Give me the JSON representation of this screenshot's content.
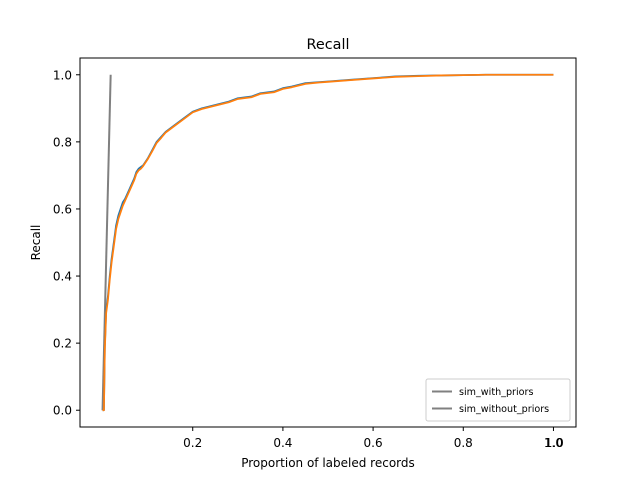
{
  "chart_data": {
    "type": "line",
    "title": "Recall",
    "xlabel": "Proportion of labeled records",
    "ylabel": "Recall",
    "xlim": [
      -0.05,
      1.05
    ],
    "ylim": [
      -0.05,
      1.05
    ],
    "x_ticks": [
      0.2,
      0.4,
      0.6,
      0.8,
      1.0
    ],
    "x_tick_labels": [
      "0.2",
      "0.4",
      "0.6",
      "0.8",
      "1.0"
    ],
    "x_tick_overlay_labels": [
      "1.0"
    ],
    "y_ticks": [
      0.0,
      0.2,
      0.4,
      0.6,
      0.8,
      1.0
    ],
    "y_tick_labels": [
      "0.0",
      "0.2",
      "0.4",
      "0.6",
      "0.8",
      "1.0"
    ],
    "grid": false,
    "legend": {
      "position": "lower-right",
      "entries": [
        {
          "label": "sim_with_priors",
          "color": "#808080"
        },
        {
          "label": "sim_without_priors",
          "color": "#808080"
        }
      ]
    },
    "series": [
      {
        "color": "#808080",
        "x": [
          0.0,
          0.018
        ],
        "y": [
          0.0,
          1.0
        ]
      },
      {
        "color": "#1f77b4",
        "x": [
          0.0,
          0.003,
          0.005,
          0.008,
          0.012,
          0.016,
          0.02,
          0.025,
          0.03,
          0.035,
          0.04,
          0.045,
          0.05,
          0.055,
          0.06,
          0.065,
          0.07,
          0.075,
          0.08,
          0.085,
          0.09,
          0.1,
          0.11,
          0.12,
          0.13,
          0.14,
          0.15,
          0.16,
          0.18,
          0.2,
          0.22,
          0.25,
          0.28,
          0.3,
          0.33,
          0.35,
          0.38,
          0.4,
          0.42,
          0.45,
          0.48,
          0.5,
          0.55,
          0.6,
          0.65,
          0.7,
          0.75,
          0.8,
          0.85,
          0.9,
          0.95,
          1.0
        ],
        "y": [
          0.0,
          0.0,
          0.19,
          0.3,
          0.34,
          0.4,
          0.45,
          0.5,
          0.55,
          0.58,
          0.6,
          0.62,
          0.63,
          0.645,
          0.66,
          0.675,
          0.69,
          0.71,
          0.72,
          0.725,
          0.73,
          0.75,
          0.775,
          0.8,
          0.815,
          0.83,
          0.84,
          0.85,
          0.87,
          0.89,
          0.9,
          0.91,
          0.92,
          0.93,
          0.935,
          0.945,
          0.95,
          0.96,
          0.965,
          0.975,
          0.978,
          0.98,
          0.985,
          0.99,
          0.995,
          0.997,
          0.998,
          0.999,
          1.0,
          1.0,
          1.0,
          1.0
        ]
      },
      {
        "color": "#ff7f0e",
        "x": [
          0.0,
          0.003,
          0.005,
          0.008,
          0.012,
          0.016,
          0.02,
          0.025,
          0.03,
          0.035,
          0.04,
          0.045,
          0.05,
          0.055,
          0.06,
          0.065,
          0.07,
          0.075,
          0.08,
          0.085,
          0.09,
          0.1,
          0.11,
          0.12,
          0.13,
          0.14,
          0.15,
          0.16,
          0.18,
          0.2,
          0.22,
          0.25,
          0.28,
          0.3,
          0.33,
          0.35,
          0.38,
          0.4,
          0.42,
          0.45,
          0.48,
          0.5,
          0.55,
          0.6,
          0.65,
          0.7,
          0.75,
          0.8,
          0.85,
          0.9,
          0.95,
          1.0
        ],
        "y": [
          0.0,
          0.0,
          0.18,
          0.29,
          0.33,
          0.39,
          0.44,
          0.49,
          0.54,
          0.57,
          0.59,
          0.61,
          0.625,
          0.64,
          0.655,
          0.67,
          0.685,
          0.705,
          0.715,
          0.72,
          0.728,
          0.748,
          0.772,
          0.797,
          0.812,
          0.828,
          0.838,
          0.848,
          0.868,
          0.888,
          0.898,
          0.908,
          0.918,
          0.928,
          0.933,
          0.943,
          0.948,
          0.958,
          0.963,
          0.973,
          0.977,
          0.979,
          0.984,
          0.989,
          0.994,
          0.996,
          0.998,
          0.999,
          1.0,
          1.0,
          1.0,
          1.0
        ]
      }
    ]
  }
}
